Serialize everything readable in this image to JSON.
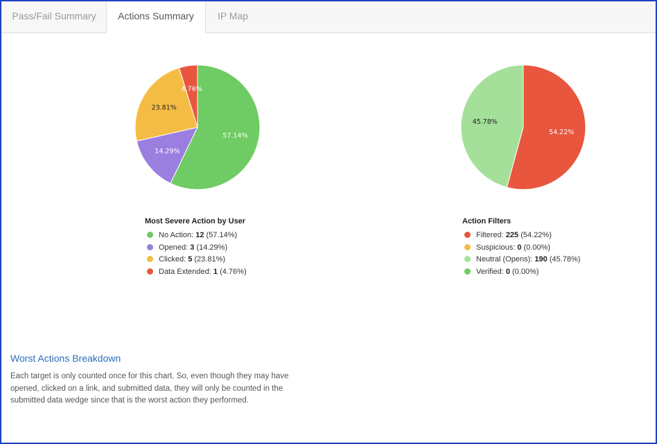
{
  "tabs": [
    {
      "label": "Pass/Fail Summary",
      "active": false
    },
    {
      "label": "Actions Summary",
      "active": true
    },
    {
      "label": "IP Map",
      "active": false
    }
  ],
  "chart_data": [
    {
      "type": "pie",
      "title": "Most Severe Action by User",
      "categories": [
        "No Action",
        "Opened",
        "Clicked",
        "Data Extended"
      ],
      "values": [
        12,
        3,
        5,
        1
      ],
      "percent_labels": [
        "57.14%",
        "14.29%",
        "23.81%",
        "4.76%"
      ],
      "colors": [
        "#6fcb63",
        "#9b7fe0",
        "#f5bc45",
        "#e8563e"
      ],
      "label_colors": [
        "#ffffff",
        "#ffffff",
        "#222222",
        "#ffffff"
      ],
      "legend_values": [
        "(57.14%)",
        "(14.29%)",
        "(23.81%)",
        "(4.76%)"
      ]
    },
    {
      "type": "pie",
      "title": "Action Filters",
      "categories": [
        "Filtered",
        "Suspicious",
        "Neutral (Opens)",
        "Verified"
      ],
      "values": [
        225,
        0,
        190,
        0
      ],
      "percent_labels": [
        "54.22%",
        "0.00%",
        "45.78%",
        "0.00%"
      ],
      "colors": [
        "#e8563e",
        "#f5bc45",
        "#a4e09a",
        "#6fcb63"
      ],
      "label_colors": [
        "#ffffff",
        "#222222",
        "#222222",
        "#222222"
      ],
      "legend_values": [
        "(54.22%)",
        "(0.00%)",
        "(45.78%)",
        "(0.00%)"
      ]
    }
  ],
  "breakdown": {
    "title": "Worst Actions Breakdown",
    "text": "Each target is only counted once for this chart. So, even though they may have opened, clicked on a link, and submitted data, they will only be counted in the submitted data wedge since that is the worst action they performed."
  }
}
